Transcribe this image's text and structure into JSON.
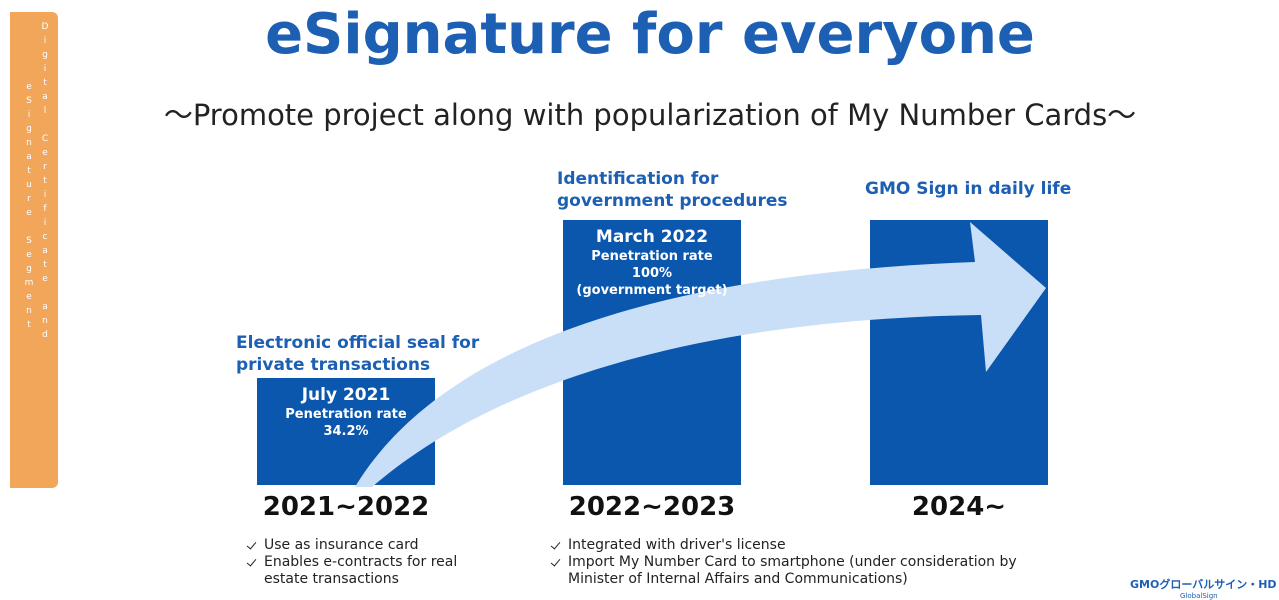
{
  "sidebar": [
    "eSignature Segment",
    "Digital Certificate and"
  ],
  "title": "eSignature for everyone",
  "subtitle": "～Promote project along with popularization of My Number Cards～",
  "stages": [
    {
      "heading": [
        "Electronic official seal for",
        "private transactions"
      ],
      "box": [
        "July 2021",
        "Penetration rate",
        "34.2%"
      ],
      "period": "2021~2022",
      "bullets": [
        "Use as insurance card",
        "Enables e-contracts for real estate transactions"
      ]
    },
    {
      "heading": [
        "Identification for",
        "government procedures"
      ],
      "box": [
        "March 2022",
        "Penetration rate",
        "100%",
        "(government target)"
      ],
      "period": "2022~2023",
      "bullets": [
        "Integrated with driver's license",
        "Import My Number Card to smartphone (under consideration by Minister of Internal Affairs and Communications)"
      ]
    },
    {
      "heading": [
        "GMO Sign in daily life"
      ],
      "box": [],
      "period": "2024~",
      "bullets": []
    }
  ],
  "logo": {
    "main": "GMOグローバルサイン・HD",
    "sub": "GlobalSign"
  }
}
